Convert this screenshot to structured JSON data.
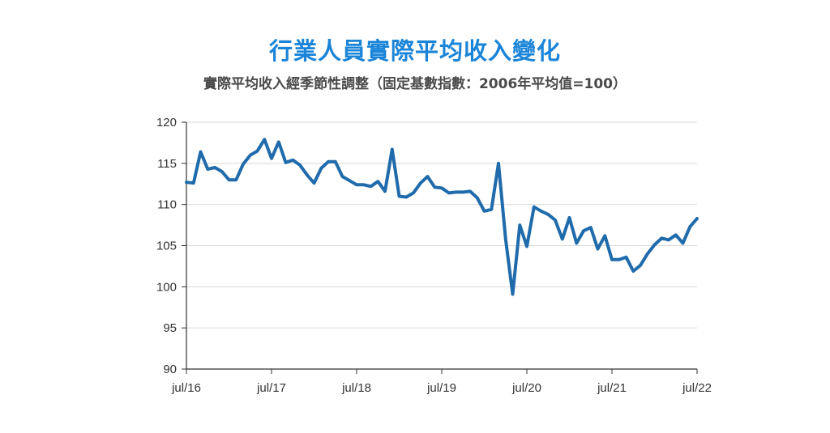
{
  "chart_data": {
    "type": "line",
    "title": "行業人員實際平均收入變化",
    "subtitle": "實際平均收入經季節性調整（固定基數指數：2006年平均值=100）",
    "xlabel": "",
    "ylabel": "",
    "ylim": [
      90,
      120
    ],
    "yticks": [
      90,
      95,
      100,
      105,
      110,
      115,
      120
    ],
    "xtick_labels": [
      "jul/16",
      "jul/17",
      "jul/18",
      "jul/19",
      "jul/20",
      "jul/21",
      "jul/22"
    ],
    "grid": true,
    "line_color": "#1f6bab",
    "series": [
      {
        "values": [
          112.7,
          112.6,
          116.4,
          114.3,
          114.5,
          114.0,
          113.0,
          113.0,
          114.9,
          116.0,
          116.5,
          117.9,
          115.6,
          117.6,
          115.1,
          115.4,
          114.8,
          113.6,
          112.6,
          114.4,
          115.2,
          115.2,
          113.4,
          112.9,
          112.4,
          112.4,
          112.2,
          112.8,
          111.6,
          116.7,
          111.0,
          110.9,
          111.4,
          112.6,
          113.4,
          112.1,
          112.0,
          111.4,
          111.5,
          111.5,
          111.6,
          110.8,
          109.2,
          109.4,
          115.0,
          105.8,
          99.1,
          107.5,
          104.9,
          109.7,
          109.2,
          108.8,
          108.1,
          105.8,
          108.4,
          105.3,
          106.8,
          107.2,
          104.6,
          106.2,
          103.3,
          103.3,
          103.6,
          101.9,
          102.6,
          104.0,
          105.1,
          105.9,
          105.7,
          106.3,
          105.3,
          107.3,
          108.3
        ]
      }
    ]
  }
}
